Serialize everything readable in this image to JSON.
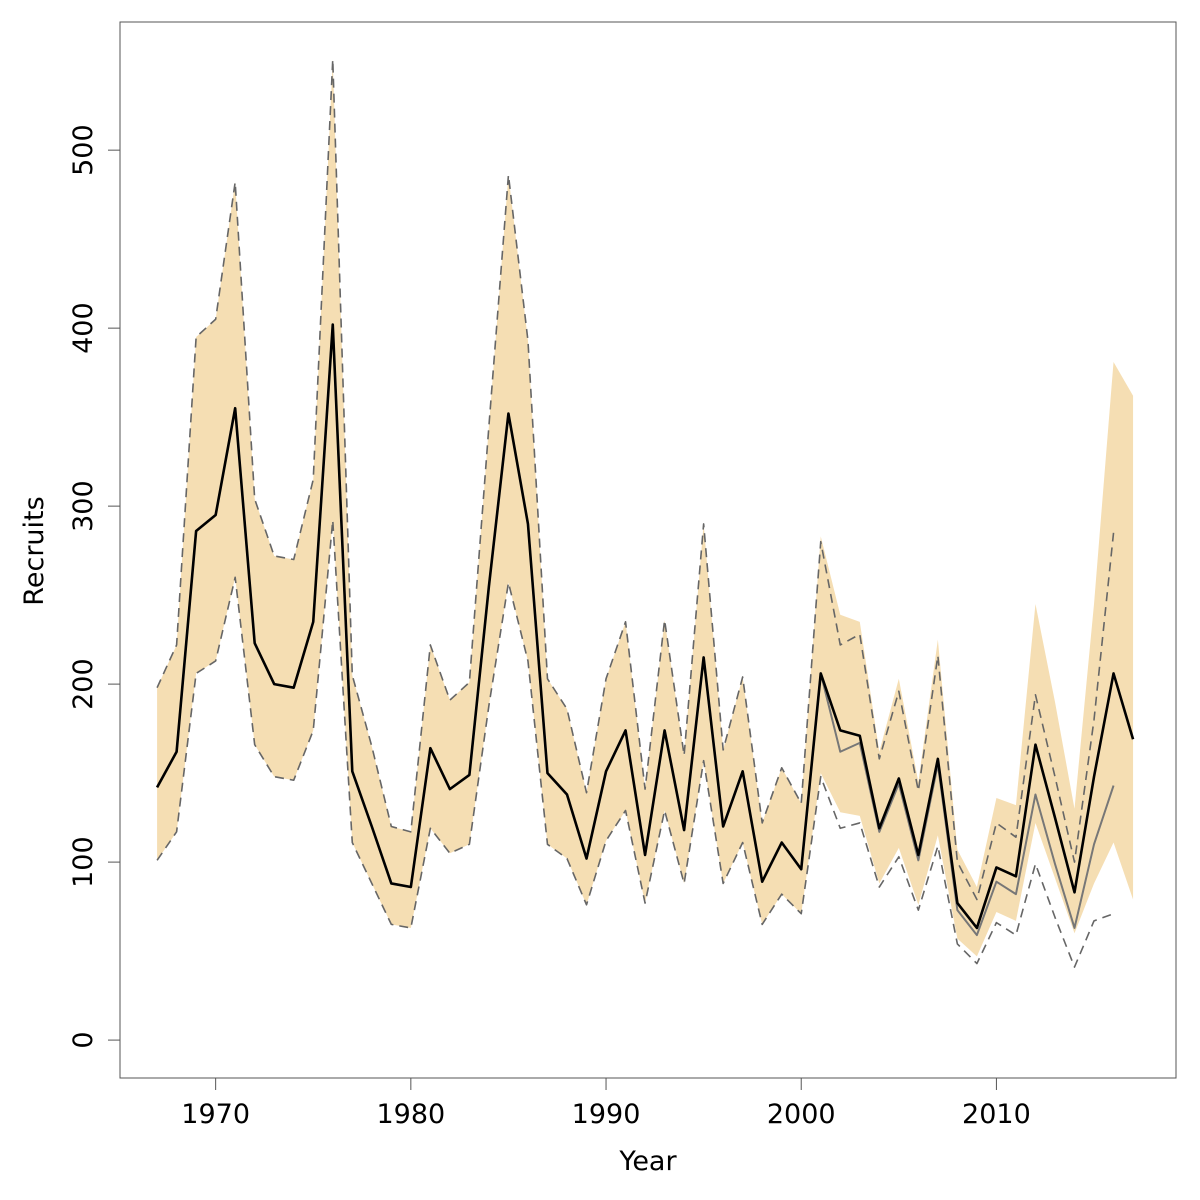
{
  "chart_data": {
    "type": "line",
    "xlabel": "Year",
    "ylabel": "Recruits",
    "x": [
      1967,
      1968,
      1969,
      1970,
      1971,
      1972,
      1973,
      1974,
      1975,
      1976,
      1977,
      1978,
      1979,
      1980,
      1981,
      1982,
      1983,
      1984,
      1985,
      1986,
      1987,
      1988,
      1989,
      1990,
      1991,
      1992,
      1993,
      1994,
      1995,
      1996,
      1997,
      1998,
      1999,
      2000,
      2001,
      2002,
      2003,
      2004,
      2005,
      2006,
      2007,
      2008,
      2009,
      2010,
      2011,
      2012,
      2013,
      2014,
      2015,
      2016,
      2017
    ],
    "band": {
      "color": "#f5deb3",
      "upper": [
        198,
        222,
        395,
        405,
        482,
        304,
        272,
        270,
        315,
        551,
        205,
        165,
        120,
        117,
        222,
        191,
        201,
        345,
        486,
        393,
        203,
        186,
        139,
        203,
        235,
        141,
        236,
        160,
        290,
        163,
        204,
        122,
        153,
        133,
        283,
        239,
        235,
        162,
        203,
        145,
        225,
        107,
        86,
        136,
        132,
        245,
        190,
        130,
        245,
        381,
        362
      ],
      "lower": [
        101,
        117,
        206,
        213,
        260,
        166,
        148,
        146,
        174,
        292,
        111,
        88,
        65,
        63,
        119,
        105,
        110,
        188,
        257,
        213,
        110,
        102,
        76,
        112,
        129,
        77,
        129,
        88,
        157,
        88,
        111,
        65,
        82,
        71,
        150,
        128,
        126,
        88,
        108,
        76,
        115,
        57,
        47,
        72,
        67,
        122,
        91,
        60,
        88,
        111,
        79
      ]
    },
    "series": [
      {
        "color": "#666666",
        "dashed": true,
        "width": 1.6,
        "values": [
          198,
          222,
          395,
          405,
          482,
          304,
          272,
          270,
          315,
          551,
          205,
          165,
          120,
          117,
          222,
          191,
          201,
          345,
          486,
          393,
          203,
          186,
          139,
          203,
          235,
          141,
          236,
          160,
          290,
          163,
          204,
          122,
          153,
          133,
          280,
          222,
          228,
          158,
          196,
          140,
          216,
          100,
          79,
          122,
          114,
          194,
          148,
          100,
          180,
          285,
          null
        ]
      },
      {
        "color": "#666666",
        "dashed": true,
        "width": 1.6,
        "values": [
          101,
          117,
          206,
          213,
          260,
          166,
          148,
          146,
          174,
          292,
          111,
          88,
          65,
          63,
          119,
          105,
          110,
          188,
          257,
          213,
          110,
          102,
          76,
          112,
          129,
          77,
          129,
          88,
          157,
          88,
          111,
          65,
          82,
          71,
          148,
          119,
          122,
          86,
          103,
          73,
          109,
          54,
          43,
          66,
          59,
          99,
          69,
          41,
          67,
          71,
          null
        ]
      },
      {
        "color": "#777777",
        "dashed": false,
        "width": 2,
        "values": [
          142,
          162,
          286,
          295,
          355,
          223,
          200,
          198,
          235,
          402,
          151,
          120,
          88,
          86,
          164,
          141,
          149,
          255,
          352,
          290,
          150,
          138,
          102,
          151,
          174,
          104,
          174,
          118,
          215,
          120,
          151,
          89,
          111,
          96,
          206,
          162,
          167,
          117,
          144,
          101,
          155,
          73,
          59,
          89,
          82,
          138,
          99,
          63,
          110,
          143,
          null
        ]
      },
      {
        "color": "#000000",
        "dashed": false,
        "width": 2.6,
        "values": [
          142,
          162,
          286,
          295,
          355,
          223,
          200,
          198,
          235,
          402,
          151,
          120,
          88,
          86,
          164,
          141,
          149,
          255,
          352,
          290,
          150,
          138,
          102,
          151,
          174,
          104,
          174,
          118,
          215,
          120,
          151,
          89,
          111,
          96,
          206,
          174,
          171,
          119,
          147,
          104,
          158,
          77,
          63,
          97,
          92,
          166,
          125,
          83,
          148,
          206,
          169
        ]
      }
    ],
    "xlim": [
      1965.1,
      2019.2
    ],
    "ylim": [
      -21.3,
      572
    ],
    "xticks": [
      1970,
      1980,
      1990,
      2000,
      2010
    ],
    "yticks": [
      0,
      100,
      200,
      300,
      400,
      500
    ]
  }
}
